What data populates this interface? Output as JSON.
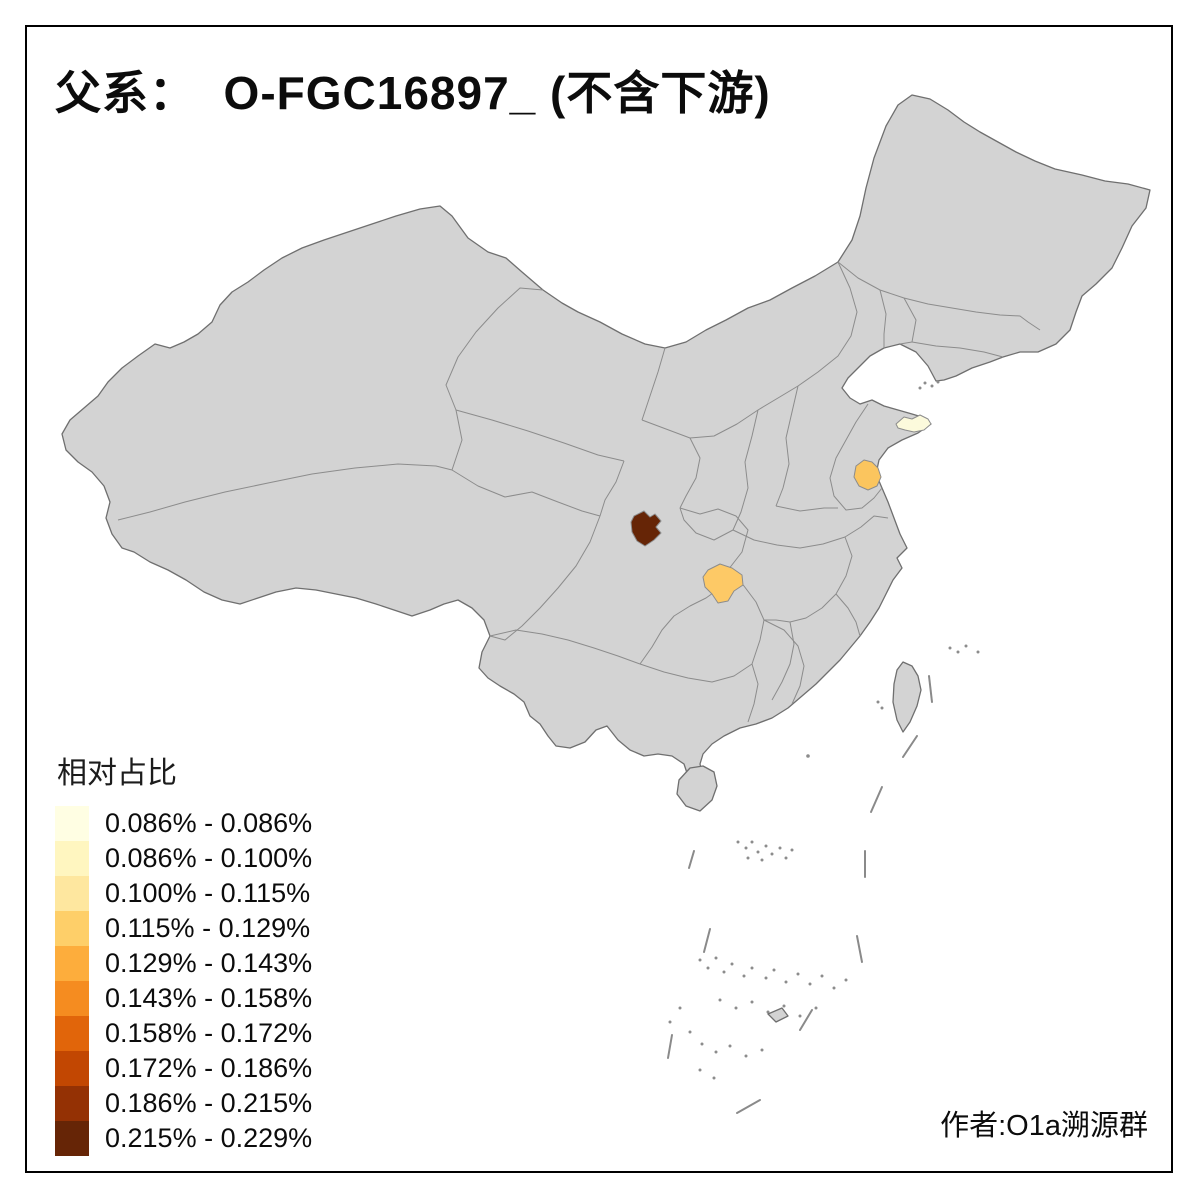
{
  "title": "父系：  O-FGC16897_ (不含下游)",
  "author_credit": "作者:O1a溯源群",
  "legend": {
    "title": "相对占比",
    "items": [
      {
        "label": "0.086% - 0.086%",
        "color": "#FFFEE3"
      },
      {
        "label": "0.086% - 0.100%",
        "color": "#FFF6C0"
      },
      {
        "label": "0.100% - 0.115%",
        "color": "#FEE79F"
      },
      {
        "label": "0.115% - 0.129%",
        "color": "#FECF69"
      },
      {
        "label": "0.129% - 0.143%",
        "color": "#FDAD3C"
      },
      {
        "label": "0.143% - 0.158%",
        "color": "#F58C20"
      },
      {
        "label": "0.158% - 0.172%",
        "color": "#E1650A"
      },
      {
        "label": "0.172% - 0.186%",
        "color": "#C24702"
      },
      {
        "label": "0.186% - 0.215%",
        "color": "#943104"
      },
      {
        "label": "0.215% - 0.229%",
        "color": "#662506"
      }
    ]
  },
  "map": {
    "base_fill": "#D3D3D3",
    "coast_stroke": "#6F6F6F",
    "border_stroke": "#8C8C8C",
    "sea_background": "#FFFFFF",
    "frame_color": "#000000",
    "highlighted_regions": [
      {
        "location": "shandong-peninsula-tip",
        "bucket": "0.086% - 0.086%",
        "color": "#FCFADC"
      },
      {
        "location": "jiangsu-north-coast",
        "bucket": "0.115% - 0.129%",
        "color": "#FBC55E"
      },
      {
        "location": "west-hubei",
        "bucket": "0.115% - 0.129%",
        "color": "#FDC966"
      },
      {
        "location": "north-sichuan",
        "bucket": "0.215% - 0.229%",
        "color": "#662506"
      }
    ]
  },
  "chart_data": {
    "type": "choropleth-map",
    "title": "父系：  O-FGC16897_ (不含下游)",
    "legend_title": "相对占比",
    "classes": [
      "0.086% - 0.086%",
      "0.086% - 0.100%",
      "0.100% - 0.115%",
      "0.115% - 0.129%",
      "0.129% - 0.143%",
      "0.143% - 0.158%",
      "0.158% - 0.172%",
      "0.172% - 0.186%",
      "0.186% - 0.215%",
      "0.215% - 0.229%"
    ],
    "shaded_regions": [
      {
        "location": "shandong-peninsula-tip",
        "class": "0.086% - 0.086%"
      },
      {
        "location": "jiangsu-north-coast",
        "class": "0.115% - 0.129%"
      },
      {
        "location": "west-hubei",
        "class": "0.115% - 0.129%"
      },
      {
        "location": "north-sichuan",
        "class": "0.215% - 0.229%"
      }
    ],
    "unshaded_fill": "all other prefectures gray"
  }
}
